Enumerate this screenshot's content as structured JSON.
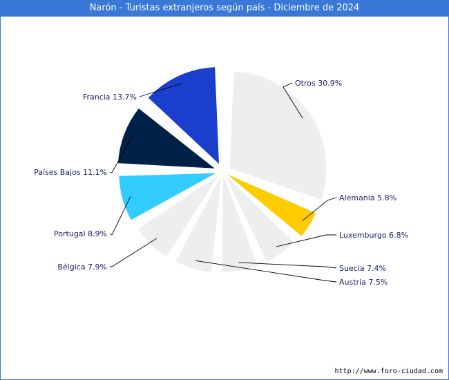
{
  "chart_data": {
    "type": "pie",
    "title": "Narón - Turistas extranjeros según país - Diciembre de 2024",
    "slices": [
      {
        "name": "Otros",
        "value": 30.9,
        "label": "Otros 30.9%",
        "color": "#eeeeee"
      },
      {
        "name": "Alemania",
        "value": 5.8,
        "label": "Alemania 5.8%",
        "color": "#ffcc00"
      },
      {
        "name": "Luxemburgo",
        "value": 6.8,
        "label": "Luxemburgo 6.8%",
        "color": "#eeeeee"
      },
      {
        "name": "Suecia",
        "value": 7.4,
        "label": "Suecia 7.4%",
        "color": "#eeeeee"
      },
      {
        "name": "Austria",
        "value": 7.5,
        "label": "Austria 7.5%",
        "color": "#eeeeee"
      },
      {
        "name": "Bélgica",
        "value": 7.9,
        "label": "Bélgica 7.9%",
        "color": "#eeeeee"
      },
      {
        "name": "Portugal",
        "value": 8.9,
        "label": "Portugal 8.9%",
        "color": "#33ccff"
      },
      {
        "name": "Países Bajos",
        "value": 11.1,
        "label": "Países Bajos 11.1%",
        "color": "#002147"
      },
      {
        "name": "Francia",
        "value": 13.7,
        "label": "Francia 13.7%",
        "color": "#1a3fcc"
      }
    ]
  },
  "footer": {
    "url": "http://www.foro-ciudad.com"
  },
  "colors": {
    "title_bar": "#3a78d8",
    "label_text": "#1a1a6e"
  }
}
